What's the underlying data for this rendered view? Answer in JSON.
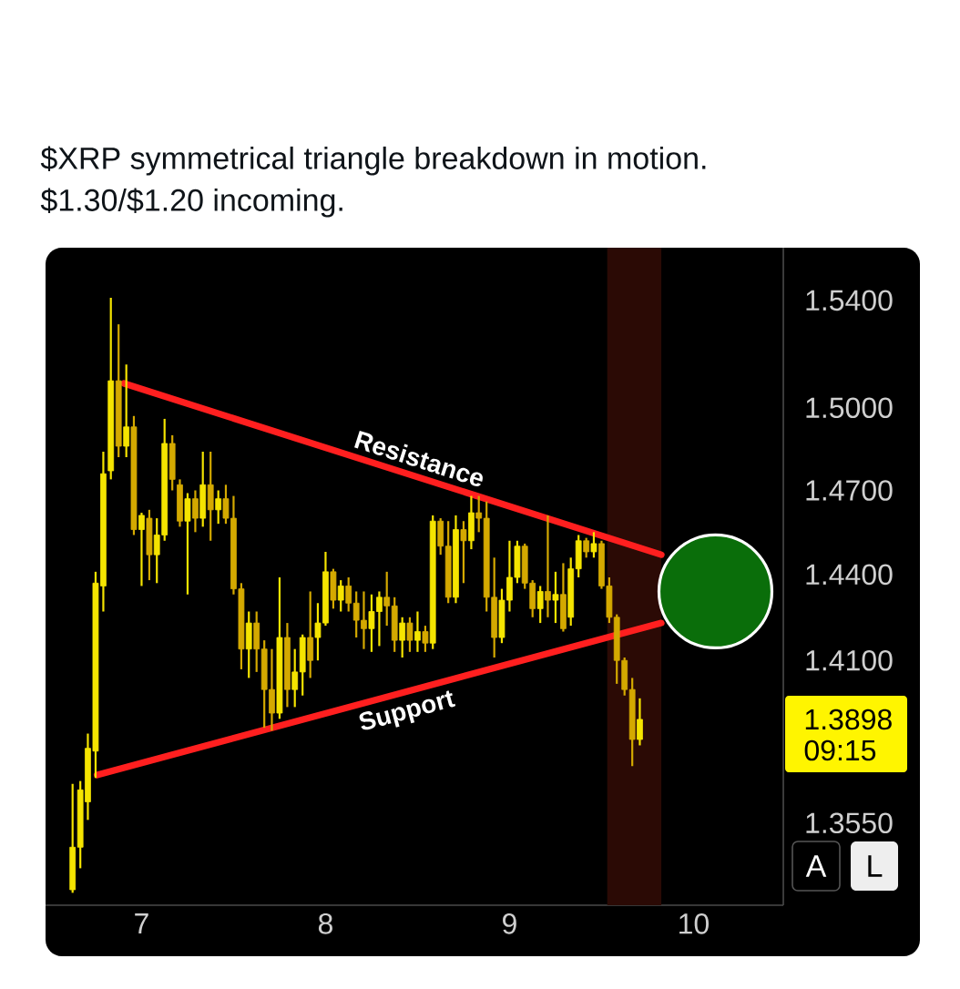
{
  "chart_data": {
    "type": "candlestick",
    "title": "$XRP symmetrical triangle breakdown in motion. $1.30/$1.20 incoming.",
    "colors": [
      "#f5e400",
      "#f5e400",
      "#f5e400",
      "#f5e400",
      "#f5e400",
      "#f5e400",
      "#d4a900",
      "#f5e400",
      "#d4a900",
      "#f5e400",
      "#d4a900",
      "#f5e400",
      "#f5e400",
      "#d4a900",
      "#d4a900",
      "#f5e400",
      "#d4a900",
      "#f5e400",
      "#d4a900",
      "#f5e400",
      "#d4a900",
      "#d4a900",
      "#d4a900",
      "#f5e400",
      "#d4a900",
      "#d4a900",
      "#d4a900",
      "#f5e400",
      "#d4a900",
      "#f5e400",
      "#f5e400",
      "#d4a900",
      "#f5e400",
      "#f5e400",
      "#d4a900",
      "#f5e400",
      "#d4a900",
      "#d4a900",
      "#d4a900",
      "#f5e400",
      "#f5e400",
      "#d4a900",
      "#d4a900",
      "#f5e400",
      "#d4a900",
      "#f5e400",
      "#d4a900",
      "#f5e400",
      "#d4a900",
      "#d4a900",
      "#f5e400",
      "#d4a900",
      "#f5e400",
      "#d4a900",
      "#d4a900",
      "#d4a900",
      "#f5e400",
      "#f5e400",
      "#f5e400",
      "#d4a900",
      "#d4a900",
      "#f5e400",
      "#d4a900",
      "#f5e400",
      "#d4a900",
      "#f5e400",
      "#f5e400",
      "#d4a900",
      "#f5e400",
      "#d4a900",
      "#d4a900",
      "#d4a900",
      "#d4a900",
      "#d4a900",
      "#f5e400"
    ],
    "x": [
      6.625,
      6.667,
      6.708,
      6.75,
      6.792,
      6.833,
      6.875,
      6.917,
      6.958,
      7.0,
      7.042,
      7.083,
      7.125,
      7.167,
      7.208,
      7.25,
      7.292,
      7.333,
      7.375,
      7.417,
      7.458,
      7.5,
      7.542,
      7.583,
      7.625,
      7.667,
      7.708,
      7.75,
      7.792,
      7.833,
      7.875,
      7.917,
      7.958,
      8.0,
      8.042,
      8.083,
      8.125,
      8.167,
      8.208,
      8.25,
      8.292,
      8.333,
      8.375,
      8.417,
      8.458,
      8.5,
      8.542,
      8.583,
      8.625,
      8.667,
      8.708,
      8.75,
      8.792,
      8.833,
      8.875,
      8.917,
      8.958,
      9.0,
      9.042,
      9.083,
      9.125,
      9.167,
      9.208,
      9.25,
      9.292,
      9.333,
      9.375,
      9.417,
      9.458,
      9.5,
      9.542,
      9.583,
      9.625,
      9.667,
      9.708
    ],
    "ohlc": [
      [
        1.333,
        1.368,
        1.332,
        1.347
      ],
      [
        1.347,
        1.369,
        1.34,
        1.366
      ],
      [
        1.362,
        1.385,
        1.356,
        1.38
      ],
      [
        1.379,
        1.441,
        1.37,
        1.437
      ],
      [
        1.436,
        1.484,
        1.427,
        1.476
      ],
      [
        1.477,
        1.541,
        1.474,
        1.51
      ],
      [
        1.51,
        1.531,
        1.482,
        1.486
      ],
      [
        1.486,
        1.516,
        1.482,
        1.493
      ],
      [
        1.493,
        1.497,
        1.454,
        1.456
      ],
      [
        1.456,
        1.462,
        1.436,
        1.461
      ],
      [
        1.46,
        1.463,
        1.438,
        1.447
      ],
      [
        1.447,
        1.46,
        1.437,
        1.454
      ],
      [
        1.454,
        1.496,
        1.452,
        1.487
      ],
      [
        1.487,
        1.49,
        1.47,
        1.474
      ],
      [
        1.472,
        1.474,
        1.457,
        1.459
      ],
      [
        1.459,
        1.469,
        1.433,
        1.467
      ],
      [
        1.467,
        1.47,
        1.455,
        1.46
      ],
      [
        1.46,
        1.484,
        1.457,
        1.472
      ],
      [
        1.472,
        1.484,
        1.452,
        1.463
      ],
      [
        1.463,
        1.47,
        1.458,
        1.467
      ],
      [
        1.467,
        1.472,
        1.458,
        1.46
      ],
      [
        1.46,
        1.468,
        1.433,
        1.435
      ],
      [
        1.435,
        1.437,
        1.407,
        1.414
      ],
      [
        1.414,
        1.427,
        1.404,
        1.423
      ],
      [
        1.423,
        1.427,
        1.406,
        1.414
      ],
      [
        1.414,
        1.417,
        1.387,
        1.4
      ],
      [
        1.4,
        1.414,
        1.386,
        1.392
      ],
      [
        1.392,
        1.439,
        1.39,
        1.418
      ],
      [
        1.418,
        1.423,
        1.394,
        1.4
      ],
      [
        1.4,
        1.414,
        1.394,
        1.406
      ],
      [
        1.406,
        1.419,
        1.398,
        1.418
      ],
      [
        1.418,
        1.434,
        1.404,
        1.41
      ],
      [
        1.418,
        1.43,
        1.41,
        1.423
      ],
      [
        1.423,
        1.448,
        1.422,
        1.441
      ],
      [
        1.441,
        1.442,
        1.428,
        1.431
      ],
      [
        1.431,
        1.438,
        1.427,
        1.436
      ],
      [
        1.436,
        1.439,
        1.427,
        1.43
      ],
      [
        1.43,
        1.434,
        1.418,
        1.424
      ],
      [
        1.424,
        1.434,
        1.414,
        1.421
      ],
      [
        1.421,
        1.433,
        1.413,
        1.427
      ],
      [
        1.427,
        1.434,
        1.415,
        1.432
      ],
      [
        1.432,
        1.441,
        1.422,
        1.429
      ],
      [
        1.429,
        1.432,
        1.413,
        1.417
      ],
      [
        1.417,
        1.425,
        1.411,
        1.423
      ],
      [
        1.423,
        1.425,
        1.413,
        1.417
      ],
      [
        1.417,
        1.427,
        1.413,
        1.42
      ],
      [
        1.42,
        1.422,
        1.413,
        1.416
      ],
      [
        1.416,
        1.461,
        1.414,
        1.459
      ],
      [
        1.459,
        1.46,
        1.447,
        1.45
      ],
      [
        1.45,
        1.459,
        1.43,
        1.432
      ],
      [
        1.432,
        1.461,
        1.43,
        1.456
      ],
      [
        1.456,
        1.459,
        1.437,
        1.452
      ],
      [
        1.452,
        1.468,
        1.449,
        1.462
      ],
      [
        1.462,
        1.468,
        1.455,
        1.46
      ],
      [
        1.46,
        1.466,
        1.427,
        1.432
      ],
      [
        1.432,
        1.446,
        1.411,
        1.418
      ],
      [
        1.418,
        1.435,
        1.416,
        1.431
      ],
      [
        1.431,
        1.452,
        1.427,
        1.439
      ],
      [
        1.439,
        1.452,
        1.437,
        1.45
      ],
      [
        1.45,
        1.451,
        1.435,
        1.437
      ],
      [
        1.437,
        1.438,
        1.425,
        1.428
      ],
      [
        1.428,
        1.436,
        1.423,
        1.434
      ],
      [
        1.434,
        1.461,
        1.425,
        1.431
      ],
      [
        1.431,
        1.441,
        1.423,
        1.433
      ],
      [
        1.433,
        1.444,
        1.42,
        1.421
      ],
      [
        1.425,
        1.446,
        1.422,
        1.442
      ],
      [
        1.442,
        1.454,
        1.439,
        1.452
      ],
      [
        1.452,
        1.453,
        1.446,
        1.448
      ],
      [
        1.448,
        1.455,
        1.446,
        1.451
      ],
      [
        1.451,
        1.452,
        1.435,
        1.436
      ],
      [
        1.436,
        1.439,
        1.423,
        1.425
      ],
      [
        1.425,
        1.426,
        1.402,
        1.41
      ],
      [
        1.41,
        1.411,
        1.398,
        1.4
      ],
      [
        1.4,
        1.404,
        1.374,
        1.383
      ],
      [
        1.383,
        1.397,
        1.381,
        1.3898
      ]
    ],
    "series": [
      {
        "type": "line",
        "name": "Resistance",
        "color": "#ff1f1f",
        "x": [
          6.904,
          9.825
        ],
        "values": [
          1.509,
          1.447
        ]
      },
      {
        "type": "line",
        "name": "Support",
        "color": "#ff1f1f",
        "x": [
          6.758,
          9.825
        ],
        "values": [
          1.371,
          1.423
        ]
      },
      {
        "type": "scatter",
        "color": "#0a6e0a",
        "marker": "circle",
        "x": [
          10.119
        ],
        "values": [
          1.434
        ]
      }
    ],
    "xlim": [
      6.478,
      10.488
    ],
    "ylim": [
      1.328,
      1.56
    ],
    "xticks": [
      7,
      8,
      9,
      10
    ],
    "yticks": [
      {
        "value": 1.355,
        "label": "1.3550"
      },
      {
        "value": 1.41,
        "label": "1.4100"
      },
      {
        "value": 1.44,
        "label": "1.4400"
      },
      {
        "value": 1.47,
        "label": "1.4700"
      },
      {
        "value": 1.5,
        "label": "1.5000"
      },
      {
        "value": 1.54,
        "label": "1.5400"
      }
    ],
    "log": true,
    "bands": [
      {
        "axis": "x",
        "from": 9.531,
        "to": 9.825,
        "color": "#2b0a05"
      }
    ],
    "annotations": [
      "1.3898",
      "09:15",
      "A",
      "L"
    ]
  }
}
